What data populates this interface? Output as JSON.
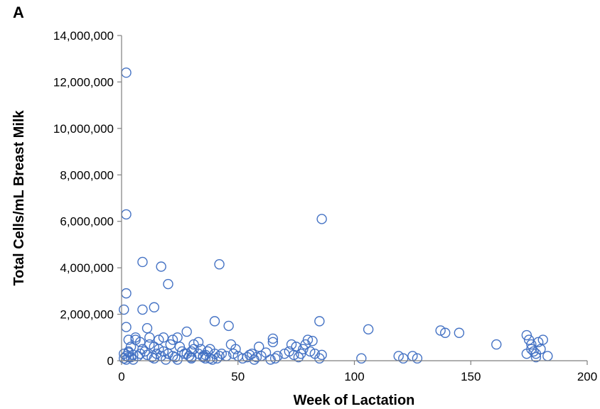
{
  "panel_label": "A",
  "chart_data": {
    "type": "scatter",
    "title": "",
    "xlabel": "Week of Lactation",
    "ylabel": "Total Cells/mL Breast Milk",
    "xlim": [
      0,
      200
    ],
    "ylim": [
      0,
      14000000
    ],
    "x_ticks": [
      0,
      50,
      100,
      150,
      200
    ],
    "x_tick_labels": [
      "0",
      "50",
      "100",
      "150",
      "200"
    ],
    "y_ticks": [
      0,
      2000000,
      4000000,
      6000000,
      8000000,
      10000000,
      12000000,
      14000000
    ],
    "y_tick_labels": [
      "0",
      "2,000,000",
      "4,000,000",
      "6,000,000",
      "8,000,000",
      "10,000,000",
      "12,000,000",
      "14,000,000"
    ],
    "grid": false,
    "legend": "none",
    "marker": "open-circle",
    "colors": {
      "marker": "#4472c4",
      "axis": "#7f7f7f"
    },
    "series": [
      {
        "x": [
          2,
          2,
          1,
          2,
          2,
          3,
          1,
          2,
          3,
          4,
          3,
          5,
          6,
          1,
          2,
          3,
          4,
          5,
          7,
          8,
          9,
          10,
          11,
          12,
          13,
          14,
          15,
          16,
          17,
          18,
          19,
          20,
          9,
          17,
          20,
          9,
          14,
          11,
          16,
          18,
          6,
          8,
          12,
          14,
          22,
          24,
          21,
          25,
          26,
          28,
          29,
          30,
          31,
          33,
          35,
          37,
          38,
          40,
          28,
          31,
          33,
          35,
          38,
          42,
          22,
          23,
          24,
          27,
          30,
          34,
          36,
          39,
          41,
          43,
          45,
          47,
          49,
          42,
          40,
          46,
          30,
          36,
          48,
          50,
          52,
          54,
          55,
          56,
          57,
          58,
          60,
          59,
          62,
          65,
          65,
          66,
          67,
          64,
          70,
          72,
          73,
          74,
          75,
          76,
          77,
          78,
          79,
          80,
          81,
          82,
          83,
          85,
          86,
          85,
          86,
          103,
          106,
          119,
          121,
          125,
          127,
          137,
          139,
          145,
          161,
          174,
          175,
          176,
          177,
          178,
          179,
          180,
          181,
          183,
          174,
          176,
          178
        ],
        "y": [
          12400000,
          6300000,
          2200000,
          2900000,
          1450000,
          900000,
          300000,
          200000,
          150000,
          600000,
          400000,
          250000,
          900000,
          100000,
          50000,
          350000,
          150000,
          50000,
          200000,
          300000,
          500000,
          400000,
          250000,
          700000,
          150000,
          100000,
          300000,
          500000,
          200000,
          400000,
          50000,
          300000,
          4250000,
          4050000,
          3300000,
          2200000,
          2300000,
          1400000,
          900000,
          1000000,
          1000000,
          800000,
          1000000,
          600000,
          900000,
          1000000,
          700000,
          600000,
          400000,
          300000,
          200000,
          100000,
          500000,
          300000,
          150000,
          400000,
          100000,
          300000,
          1250000,
          700000,
          800000,
          200000,
          500000,
          200000,
          200000,
          150000,
          50000,
          300000,
          150000,
          500000,
          250000,
          50000,
          100000,
          300000,
          200000,
          700000,
          500000,
          4150000,
          1700000,
          1500000,
          400000,
          100000,
          300000,
          200000,
          100000,
          150000,
          250000,
          300000,
          50000,
          150000,
          200000,
          600000,
          350000,
          950000,
          800000,
          100000,
          200000,
          50000,
          300000,
          400000,
          700000,
          250000,
          600000,
          150000,
          300000,
          500000,
          700000,
          900000,
          400000,
          850000,
          300000,
          1700000,
          6100000,
          100000,
          250000,
          100000,
          1350000,
          200000,
          100000,
          200000,
          100000,
          1300000,
          1200000,
          1200000,
          700000,
          1100000,
          900000,
          700000,
          400000,
          300000,
          800000,
          500000,
          900000,
          200000,
          300000,
          500000,
          150000
        ]
      }
    ]
  }
}
